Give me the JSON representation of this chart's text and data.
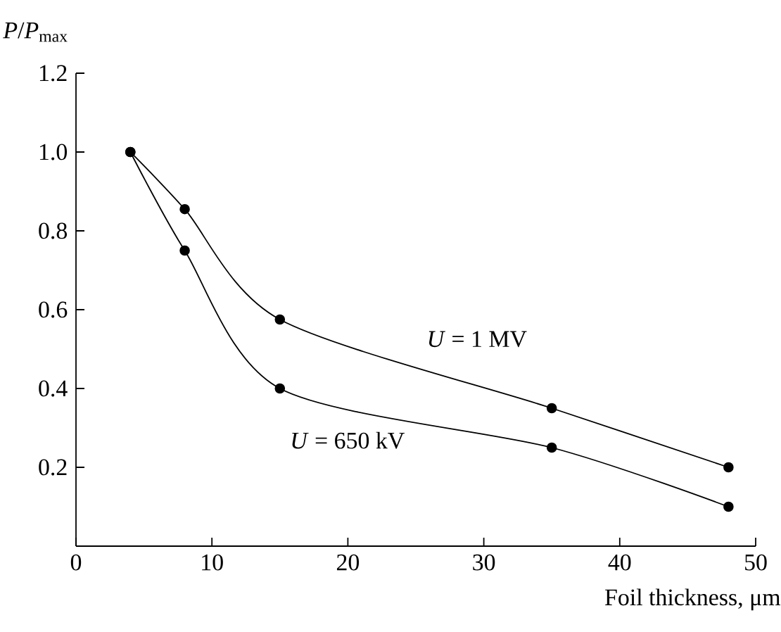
{
  "chart_data": {
    "type": "line",
    "xlabel": "Foil thickness, μm",
    "ylabel": "*P*/*P*$_{max}$",
    "xlim": [
      0,
      50
    ],
    "ylim": [
      0,
      1.2
    ],
    "xticks": [
      0,
      10,
      20,
      30,
      40,
      50
    ],
    "yticks": [
      0.2,
      0.4,
      0.6,
      0.8,
      {
        "value": 1.0,
        "label": "1.0"
      },
      1.2
    ],
    "marker": "circle",
    "line_style": "solid",
    "series": [
      {
        "name": "*U* = 1 MV",
        "color": "#000000",
        "x": [
          4,
          8,
          15,
          35,
          48
        ],
        "values": [
          1.0,
          0.855,
          0.575,
          0.35,
          0.2
        ]
      },
      {
        "name": "*U* = 650 kV",
        "color": "#000000",
        "x": [
          4,
          8,
          15,
          35,
          48
        ],
        "values": [
          1.0,
          0.75,
          0.4,
          0.25,
          0.1
        ]
      }
    ]
  }
}
